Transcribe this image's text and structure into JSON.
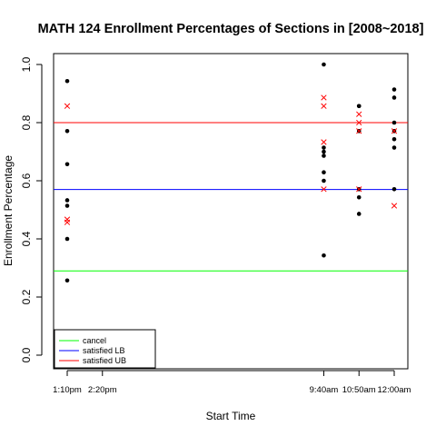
{
  "chart_data": {
    "type": "scatter",
    "title": "MATH 124 Enrollment Percentages of Sections in [2008~2018]",
    "xlabel": "Start Time",
    "ylabel": "Enrollment Percentage",
    "ylim": [
      0,
      1
    ],
    "y_ticks": [
      "0.0",
      "0.2",
      "0.4",
      "0.6",
      "0.8",
      "1.0"
    ],
    "x_ticks": [
      {
        "label": "1:10pm",
        "value": 13.1667
      },
      {
        "label": "2:20pm",
        "value": 14.3333
      },
      {
        "label": "9:40am",
        "value": 21.6667
      },
      {
        "label": "10:50am",
        "value": 22.8333
      },
      {
        "label": "12:00am",
        "value": 24.0
      }
    ],
    "xlim": [
      12.8,
      24.4
    ],
    "series": [
      {
        "marker": "dot",
        "color": "#000000",
        "points": [
          {
            "x": 13.1667,
            "y": 0.943
          },
          {
            "x": 13.1667,
            "y": 0.771
          },
          {
            "x": 13.1667,
            "y": 0.657
          },
          {
            "x": 13.1667,
            "y": 0.533
          },
          {
            "x": 13.1667,
            "y": 0.514
          },
          {
            "x": 13.1667,
            "y": 0.4
          },
          {
            "x": 13.1667,
            "y": 0.257
          },
          {
            "x": 21.6667,
            "y": 1.0
          },
          {
            "x": 21.6667,
            "y": 0.714
          },
          {
            "x": 21.6667,
            "y": 0.7
          },
          {
            "x": 21.6667,
            "y": 0.686
          },
          {
            "x": 21.6667,
            "y": 0.629
          },
          {
            "x": 21.6667,
            "y": 0.6
          },
          {
            "x": 21.6667,
            "y": 0.343
          },
          {
            "x": 22.8333,
            "y": 0.857
          },
          {
            "x": 22.8333,
            "y": 0.857
          },
          {
            "x": 22.8333,
            "y": 0.771
          },
          {
            "x": 22.8333,
            "y": 0.571
          },
          {
            "x": 22.8333,
            "y": 0.543
          },
          {
            "x": 22.8333,
            "y": 0.486
          },
          {
            "x": 24.0,
            "y": 0.914
          },
          {
            "x": 24.0,
            "y": 0.886
          },
          {
            "x": 24.0,
            "y": 0.8
          },
          {
            "x": 24.0,
            "y": 0.771
          },
          {
            "x": 24.0,
            "y": 0.743
          },
          {
            "x": 24.0,
            "y": 0.714
          },
          {
            "x": 24.0,
            "y": 0.571
          }
        ]
      },
      {
        "marker": "cross",
        "color": "#ff0000",
        "points": [
          {
            "x": 13.1667,
            "y": 0.857
          },
          {
            "x": 13.1667,
            "y": 0.467
          },
          {
            "x": 13.1667,
            "y": 0.457
          },
          {
            "x": 21.6667,
            "y": 0.886
          },
          {
            "x": 21.6667,
            "y": 0.857
          },
          {
            "x": 21.6667,
            "y": 0.733
          },
          {
            "x": 21.6667,
            "y": 0.571
          },
          {
            "x": 22.8333,
            "y": 0.829
          },
          {
            "x": 22.8333,
            "y": 0.8
          },
          {
            "x": 22.8333,
            "y": 0.771
          },
          {
            "x": 22.8333,
            "y": 0.571
          },
          {
            "x": 24.0,
            "y": 0.771
          },
          {
            "x": 24.0,
            "y": 0.514
          }
        ]
      }
    ],
    "hlines": [
      {
        "name": "cancel",
        "y": 0.29,
        "color": "#00ff00"
      },
      {
        "name": "satisfied LB",
        "y": 0.57,
        "color": "#0000ff"
      },
      {
        "name": "satisfied UB",
        "y": 0.8,
        "color": "#ff0000"
      }
    ],
    "legend_position": "bottom-left"
  }
}
